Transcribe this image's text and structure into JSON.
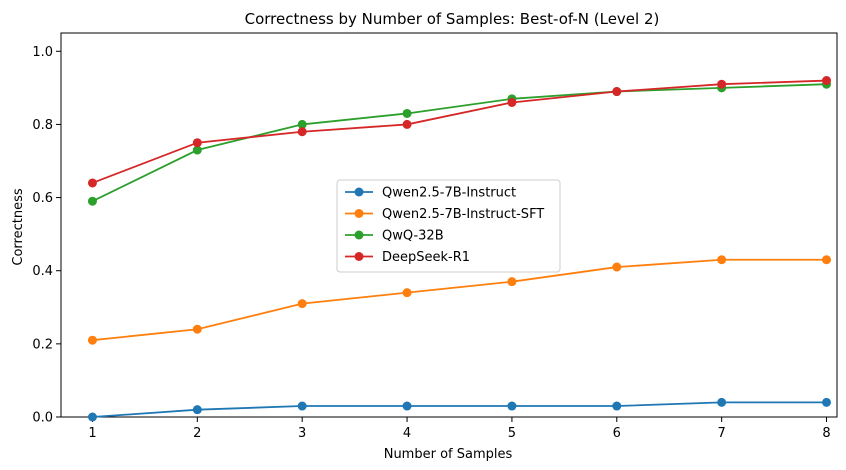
{
  "chart_data": {
    "type": "line",
    "title": "Correctness by Number of Samples: Best-of-N (Level 2)",
    "xlabel": "Number of Samples",
    "ylabel": "Correctness",
    "x": [
      1,
      2,
      3,
      4,
      5,
      6,
      7,
      8
    ],
    "xlim": [
      0.7,
      8.1
    ],
    "ylim": [
      0,
      1.05
    ],
    "xticks": [
      "1",
      "2",
      "3",
      "4",
      "5",
      "6",
      "7",
      "8"
    ],
    "yticks": [
      0.0,
      0.2,
      0.4,
      0.6,
      0.8,
      1.0
    ],
    "ytick_labels": [
      "0.0",
      "0.2",
      "0.4",
      "0.6",
      "0.8",
      "1.0"
    ],
    "grid": false,
    "legend_position": "center",
    "series": [
      {
        "name": "Qwen2.5-7B-Instruct",
        "color": "#1f77b4",
        "values": [
          0.0,
          0.02,
          0.03,
          0.03,
          0.03,
          0.03,
          0.04,
          0.04
        ]
      },
      {
        "name": "Qwen2.5-7B-Instruct-SFT",
        "color": "#ff7f0e",
        "values": [
          0.21,
          0.24,
          0.31,
          0.34,
          0.37,
          0.41,
          0.43,
          0.43
        ]
      },
      {
        "name": "QwQ-32B",
        "color": "#2ca02c",
        "values": [
          0.59,
          0.73,
          0.8,
          0.83,
          0.87,
          0.89,
          0.9,
          0.91
        ]
      },
      {
        "name": "DeepSeek-R1",
        "color": "#d62728",
        "values": [
          0.64,
          0.75,
          0.78,
          0.8,
          0.86,
          0.89,
          0.91,
          0.92
        ]
      }
    ]
  }
}
